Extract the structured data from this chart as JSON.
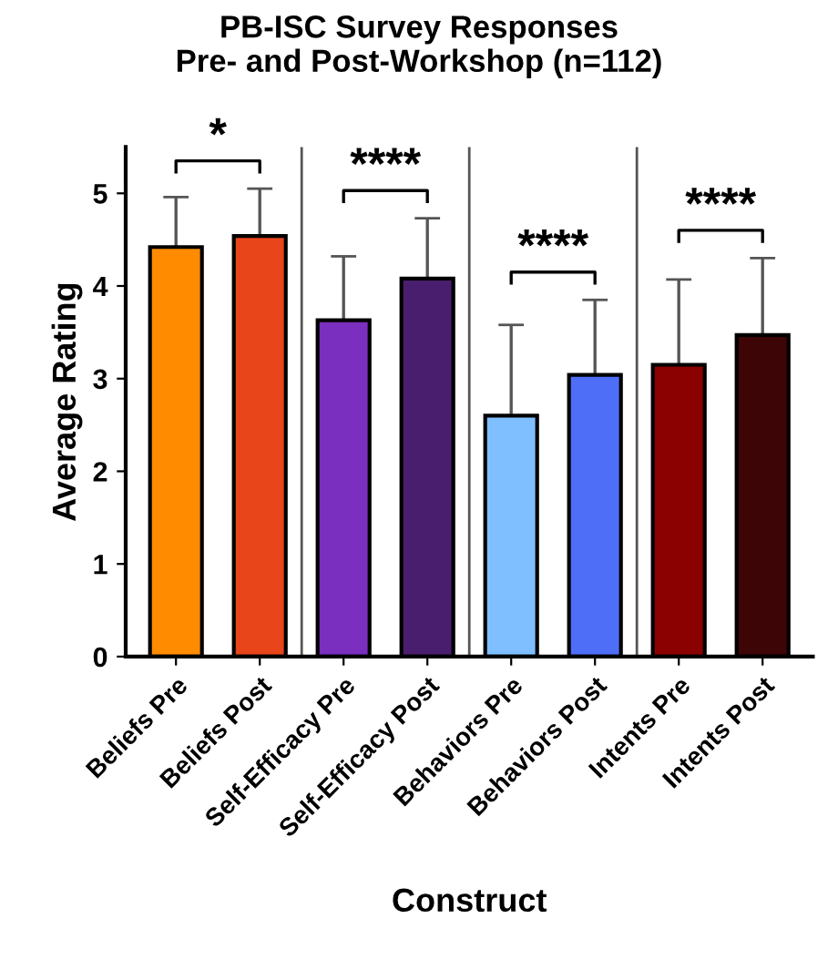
{
  "chart_data": {
    "type": "bar",
    "title": "PB-ISC Survey Responses\nPre- and Post-Workshop (n=112)",
    "xlabel": "Construct",
    "ylabel": "Average Rating",
    "categories": [
      "Beliefs Pre",
      "Beliefs Post",
      "Self-Efficacy Pre",
      "Self-Efficacy Post",
      "Behaviors Pre",
      "Behaviors Post",
      "Intents Pre",
      "Intents Post"
    ],
    "values": [
      4.42,
      4.54,
      3.63,
      4.08,
      2.6,
      3.04,
      3.15,
      3.47
    ],
    "errors": [
      [
        4.42,
        4.96
      ],
      [
        4.54,
        5.05
      ],
      [
        3.63,
        4.32
      ],
      [
        4.08,
        4.73
      ],
      [
        2.6,
        3.58
      ],
      [
        3.04,
        3.85
      ],
      [
        3.15,
        4.07
      ],
      [
        3.47,
        4.3
      ]
    ],
    "colors": [
      "#ff8c00",
      "#e8451a",
      "#7b2fbe",
      "#4a1e6e",
      "#80bfff",
      "#4f6ef7",
      "#8b0000",
      "#3d0505"
    ],
    "ylim": [
      0,
      5.5
    ],
    "yticks": [
      0,
      1,
      2,
      3,
      4,
      5
    ],
    "grid": false,
    "annotations": [
      "*",
      "****",
      "****",
      "****"
    ]
  }
}
